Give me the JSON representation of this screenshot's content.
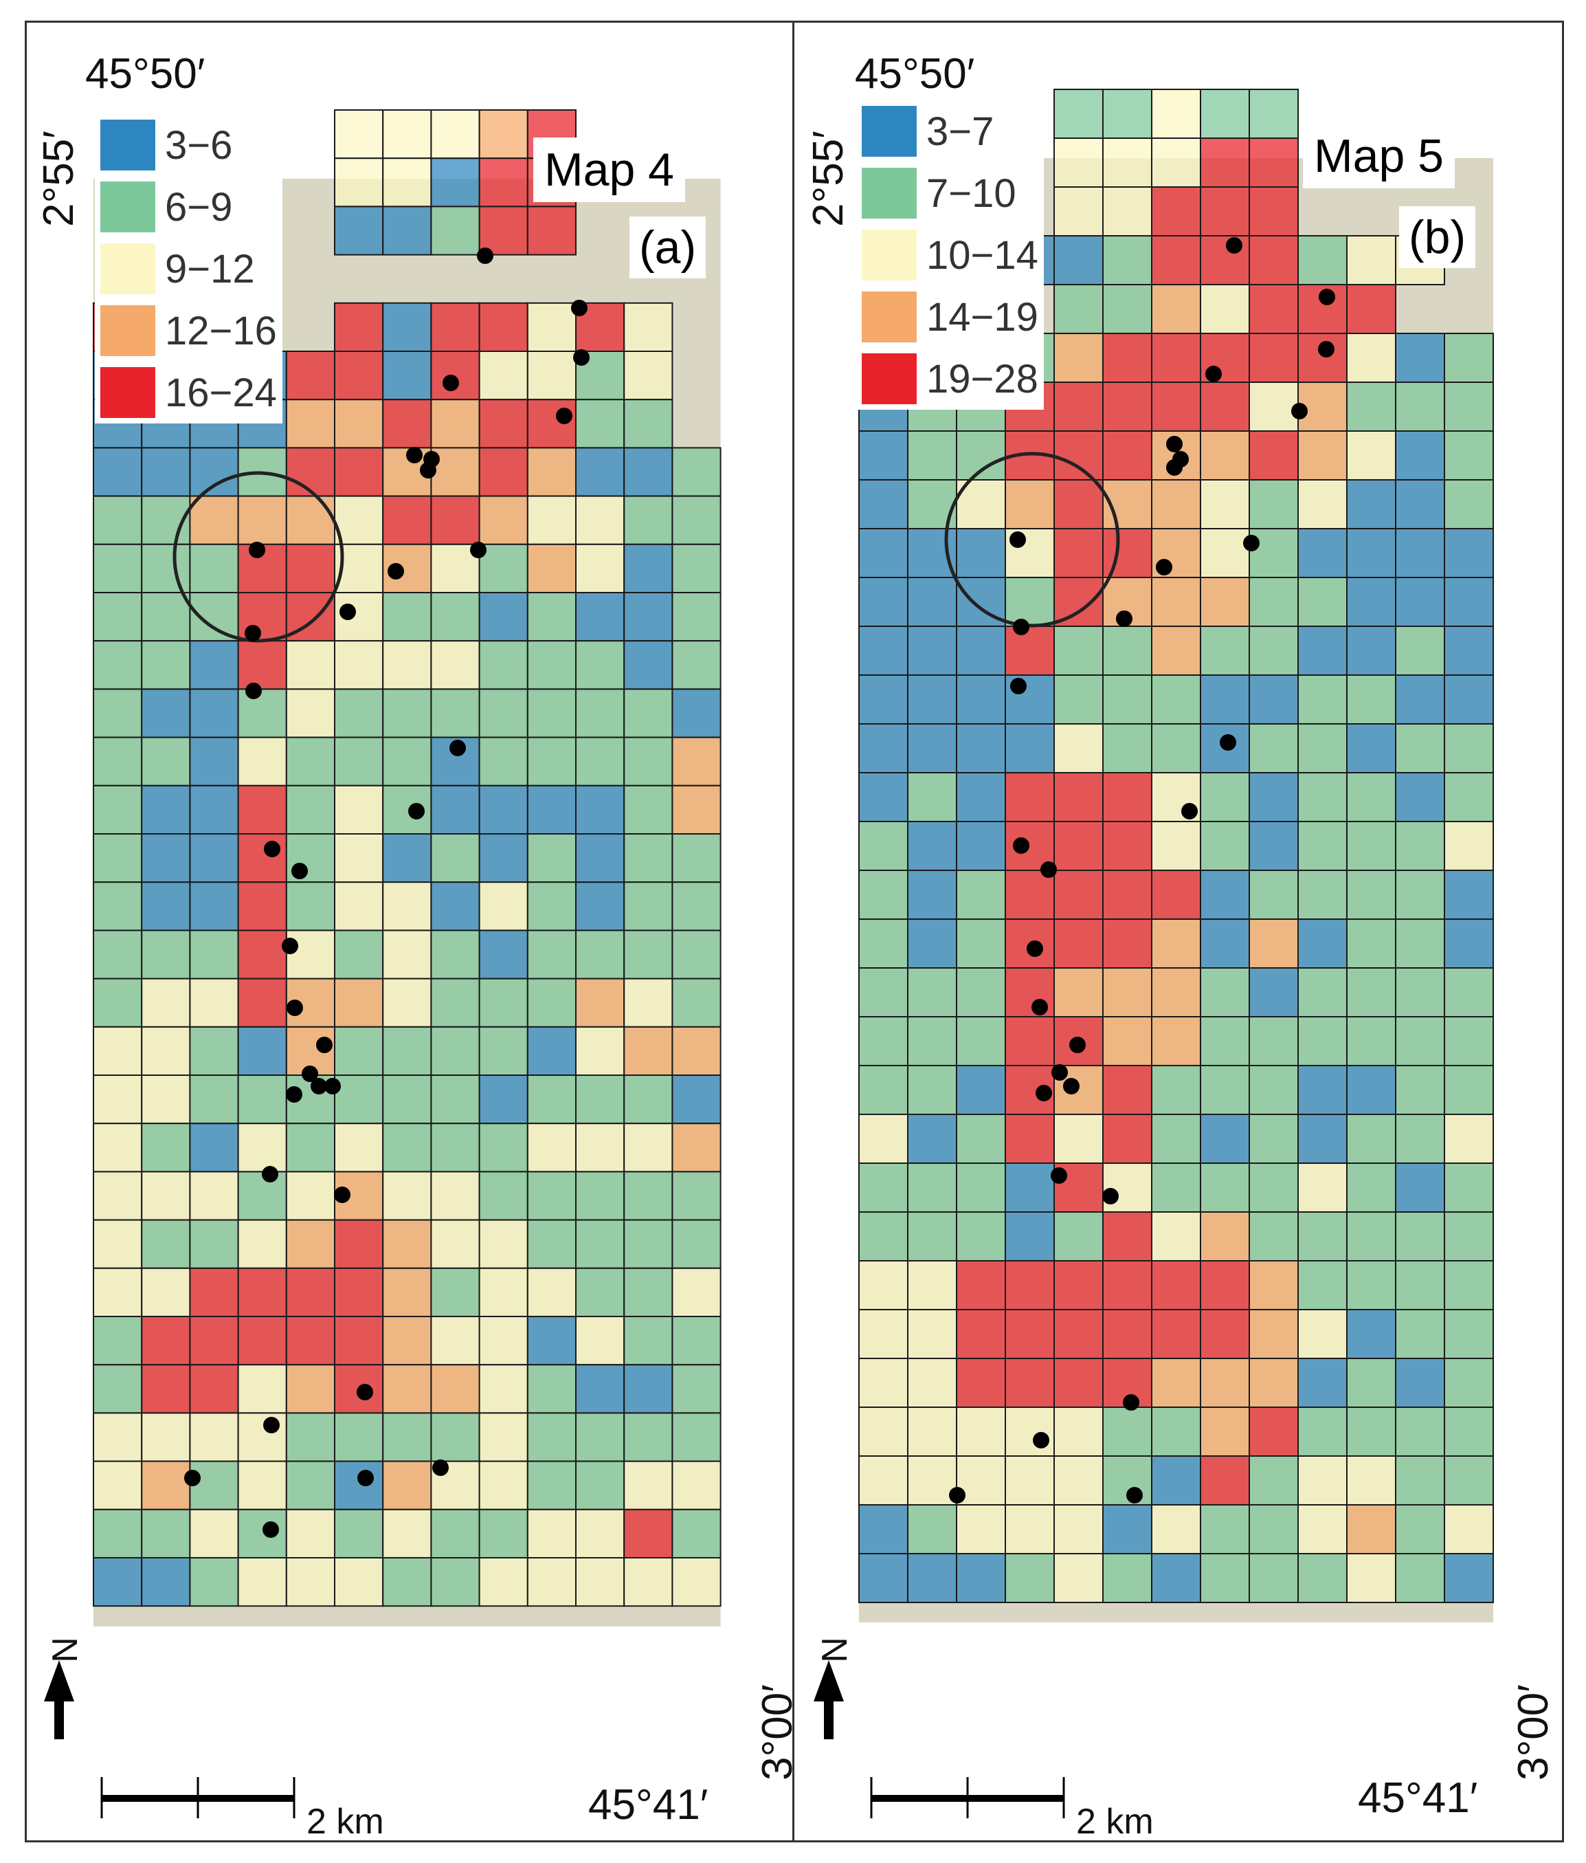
{
  "panels": [
    {
      "id": "a",
      "title": "Map 4",
      "sublabel": "(a)",
      "legend": [
        {
          "range": "3−6",
          "color": "#2e86c1"
        },
        {
          "range": "6−9",
          "color": "#7dc89a"
        },
        {
          "range": "9−12",
          "color": "#fbf6c4"
        },
        {
          "range": "12−16",
          "color": "#f5a96a"
        },
        {
          "range": "16−24",
          "color": "#e8232b"
        }
      ],
      "lat_top": "45°50′",
      "lon_top": "2°55′",
      "lat_bottom": "45°41′",
      "lon_bottom": "3°00′",
      "scale_label": "2 km",
      "north_label": "N",
      "grid_rows": [
        ".....22234..",
        ".....22044..",
        ".....00144..",
        "..........",
        "444..4044242",
        "000044042212",
        "000033434411",
        "0001443343001",
        "1133324432211",
        "1114423213201",
        "1114421101001",
        "1104222211101",
        "1001211111110",
        "1102111011113",
        "1004121000013",
        "1004120101011",
        "1004122021011",
        "1114212101111",
        "1224332111321",
        "2210311110233",
        "2211111101110",
        "2102121112223",
        "2221232211111",
        "2112343221111",
        "2244443122112",
        "1444443220211",
        "1442343321001",
        "2222111121111",
        "2312103221122",
        "1121212112241",
        "0012221122222"
      ],
      "circle_label": "",
      "points_count": 33
    },
    {
      "id": "b",
      "title": "Map 5",
      "sublabel": "(b)",
      "legend": [
        {
          "range": "3−7",
          "color": "#2e86c1"
        },
        {
          "range": "7−10",
          "color": "#7dc89a"
        },
        {
          "range": "10−14",
          "color": "#fbf6c4"
        },
        {
          "range": "14−19",
          "color": "#f5a96a"
        },
        {
          "range": "19−28",
          "color": "#e8232b"
        }
      ],
      "lat_top": "45°50′",
      "lon_top": "2°55′",
      "lat_bottom": "45°41′",
      "lon_bottom": "3°00′",
      "scale_label": "2 km",
      "north_label": "N",
      "grid_rows": [
        "....11211..",
        "....22244..",
        "....22444..",
        "..0001444122",
        "....1132444",
        "0011344444201",
        "0114444423111",
        "0114443343201",
        "0123433212001",
        "0002443210000",
        "0001433311000",
        "0004113110010",
        "0000111001100",
        "0000211011011",
        "0104442101101",
        "1004442101112",
        "1014444011110",
        "1014443030110",
        "1114333101111",
        "1114433111111",
        "1104341110011",
        "2014241010112",
        "1110421112101",
        "1110142311111",
        "2244444431111",
        "2244444432011",
        "2244443330101",
        "2222211341111",
        "2222210412211",
        "0122202112312",
        "0001210111210"
      ],
      "circle_label": "",
      "points_count": 30
    }
  ]
}
